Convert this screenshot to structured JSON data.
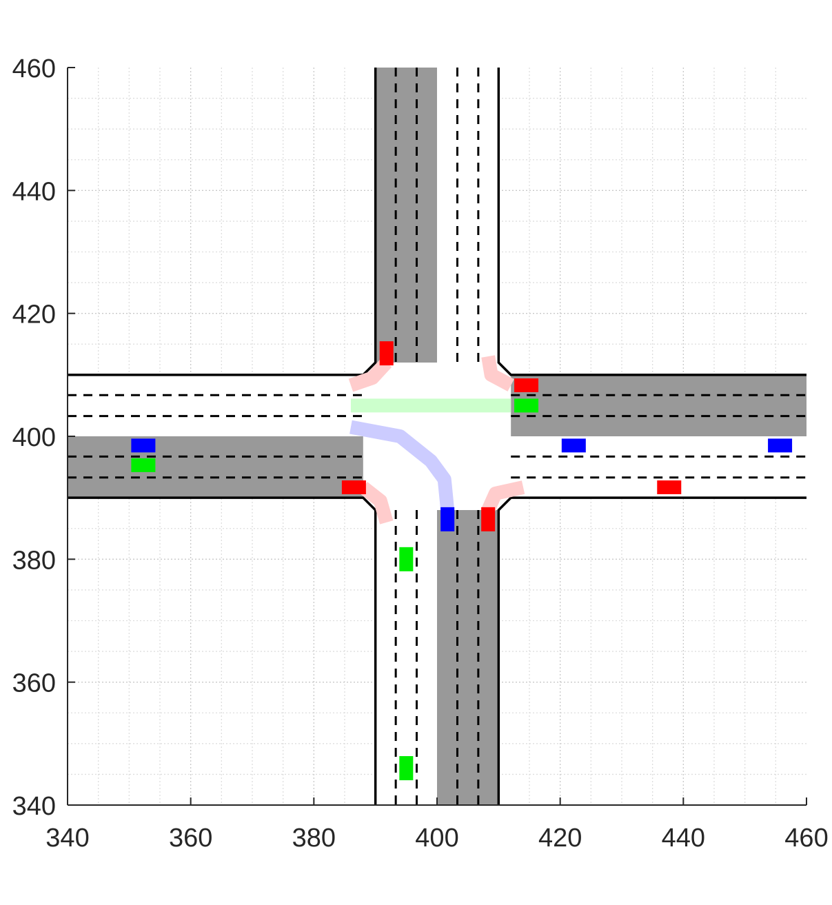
{
  "chart_data": {
    "type": "scatter",
    "title": "",
    "xlabel": "",
    "ylabel": "",
    "xlim": [
      340,
      460
    ],
    "ylim": [
      340,
      460
    ],
    "x_ticks": [
      "340",
      "360",
      "380",
      "400",
      "420",
      "440",
      "460"
    ],
    "y_ticks": [
      "340",
      "360",
      "380",
      "400",
      "420",
      "440",
      "460"
    ],
    "grid": true,
    "minor_grid": true,
    "roads": {
      "vertical": {
        "x_left": 390,
        "x_right": 410,
        "lane_dividers": [
          393.3,
          396.7,
          403.3,
          406.7
        ],
        "shaded": [
          {
            "x": [
              390,
              400
            ],
            "y": [
              412,
              460
            ]
          },
          {
            "x": [
              400,
              410
            ],
            "y": [
              340,
              388
            ]
          }
        ]
      },
      "horizontal": {
        "y_bottom": 390,
        "y_top": 410,
        "lane_dividers": [
          393.3,
          396.7,
          403.3,
          406.7
        ],
        "shaded": [
          {
            "x": [
              340,
              388
            ],
            "y": [
              390,
              400
            ]
          },
          {
            "x": [
              412,
              460
            ],
            "y": [
              400,
              410
            ]
          }
        ]
      }
    },
    "vehicles": [
      {
        "color": "#ff0000",
        "x": 391.8,
        "y": 413.5,
        "orient": "v"
      },
      {
        "color": "#ff0000",
        "x": 414.5,
        "y": 408.3,
        "orient": "h"
      },
      {
        "color": "#00ee00",
        "x": 414.5,
        "y": 405.0,
        "orient": "h"
      },
      {
        "color": "#0000ff",
        "x": 352.3,
        "y": 398.5,
        "orient": "h"
      },
      {
        "color": "#00ee00",
        "x": 352.3,
        "y": 395.3,
        "orient": "h"
      },
      {
        "color": "#0000ff",
        "x": 422.2,
        "y": 398.5,
        "orient": "h"
      },
      {
        "color": "#0000ff",
        "x": 455.7,
        "y": 398.5,
        "orient": "h"
      },
      {
        "color": "#ff0000",
        "x": 386.5,
        "y": 391.7,
        "orient": "h"
      },
      {
        "color": "#ff0000",
        "x": 437.7,
        "y": 391.7,
        "orient": "h"
      },
      {
        "color": "#0000ff",
        "x": 401.7,
        "y": 386.5,
        "orient": "v"
      },
      {
        "color": "#ff0000",
        "x": 408.3,
        "y": 386.5,
        "orient": "v"
      },
      {
        "color": "#00ee00",
        "x": 395.0,
        "y": 380.0,
        "orient": "v"
      },
      {
        "color": "#00ee00",
        "x": 395.0,
        "y": 346.0,
        "orient": "v"
      }
    ],
    "paths": [
      {
        "color": "#ffcccc",
        "points": [
          [
            386.0,
            408.3
          ],
          [
            389.5,
            409.5
          ],
          [
            391.8,
            412.0
          ]
        ]
      },
      {
        "color": "#ffcccc",
        "points": [
          [
            408.3,
            413.0
          ],
          [
            408.8,
            410.0
          ],
          [
            412.0,
            408.3
          ]
        ]
      },
      {
        "color": "#ccffcc",
        "points": [
          [
            386.0,
            405.0
          ],
          [
            412.0,
            405.0
          ]
        ]
      },
      {
        "color": "#ccccff",
        "points": [
          [
            386.0,
            401.5
          ],
          [
            394.0,
            400.0
          ],
          [
            399.0,
            396.0
          ],
          [
            401.2,
            393.0
          ],
          [
            401.7,
            388.0
          ]
        ]
      },
      {
        "color": "#ffcccc",
        "points": [
          [
            388.0,
            391.7
          ],
          [
            390.8,
            389.5
          ],
          [
            391.8,
            386.0
          ]
        ]
      },
      {
        "color": "#ffcccc",
        "points": [
          [
            408.3,
            388.0
          ],
          [
            409.5,
            390.7
          ],
          [
            414.0,
            391.7
          ]
        ]
      }
    ]
  }
}
